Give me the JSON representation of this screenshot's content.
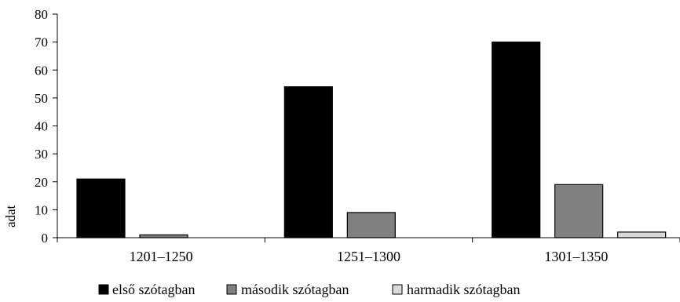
{
  "chart_data": {
    "type": "bar",
    "title": "",
    "xlabel": "",
    "ylabel": "adat",
    "ylim": [
      0,
      80
    ],
    "yticks": [
      0,
      10,
      20,
      30,
      40,
      50,
      60,
      70,
      80
    ],
    "grid": false,
    "legend_position": "bottom",
    "categories": [
      "1201–1250",
      "1251–1300",
      "1301–1350"
    ],
    "series": [
      {
        "name": "első szótagban",
        "color": "#000000",
        "values": [
          21,
          54,
          70
        ]
      },
      {
        "name": "második szótagban",
        "color": "#808080",
        "values": [
          1,
          9,
          19
        ]
      },
      {
        "name": "harmadik szótagban",
        "color": "#d9d9d9",
        "values": [
          0,
          0,
          2
        ]
      }
    ]
  }
}
